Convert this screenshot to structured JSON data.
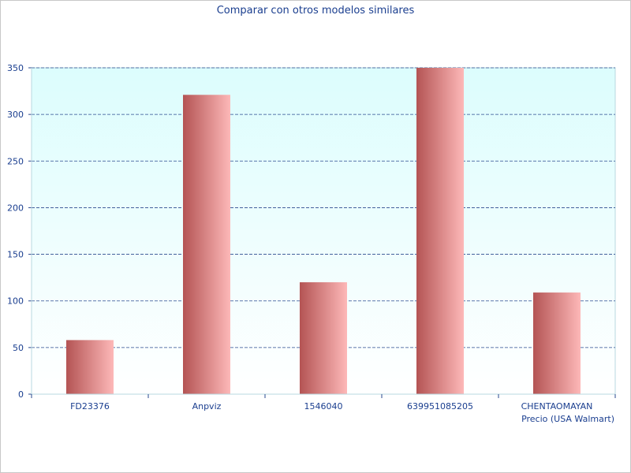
{
  "chart_data": {
    "type": "bar",
    "title": "Comparar con otros modelos similares",
    "categories": [
      "FD23376",
      "Anpviz",
      "1546040",
      "639951085205",
      "CHENTAOMAYAN"
    ],
    "values": [
      58,
      321,
      120,
      350,
      109
    ],
    "xlabel": "Precio (USA Walmart)",
    "ylabel": "",
    "ylim": [
      0,
      350
    ],
    "yticks": [
      0,
      50,
      100,
      150,
      200,
      250,
      300,
      350
    ],
    "grid": true,
    "colors": {
      "plot_bg_top": "#dcfdfd",
      "plot_bg_bottom": "#ffffff",
      "bar_dark": "#b45454",
      "bar_light": "#fdb8b8",
      "grid": "#2a4a8f",
      "text": "#1a3e8f"
    }
  }
}
